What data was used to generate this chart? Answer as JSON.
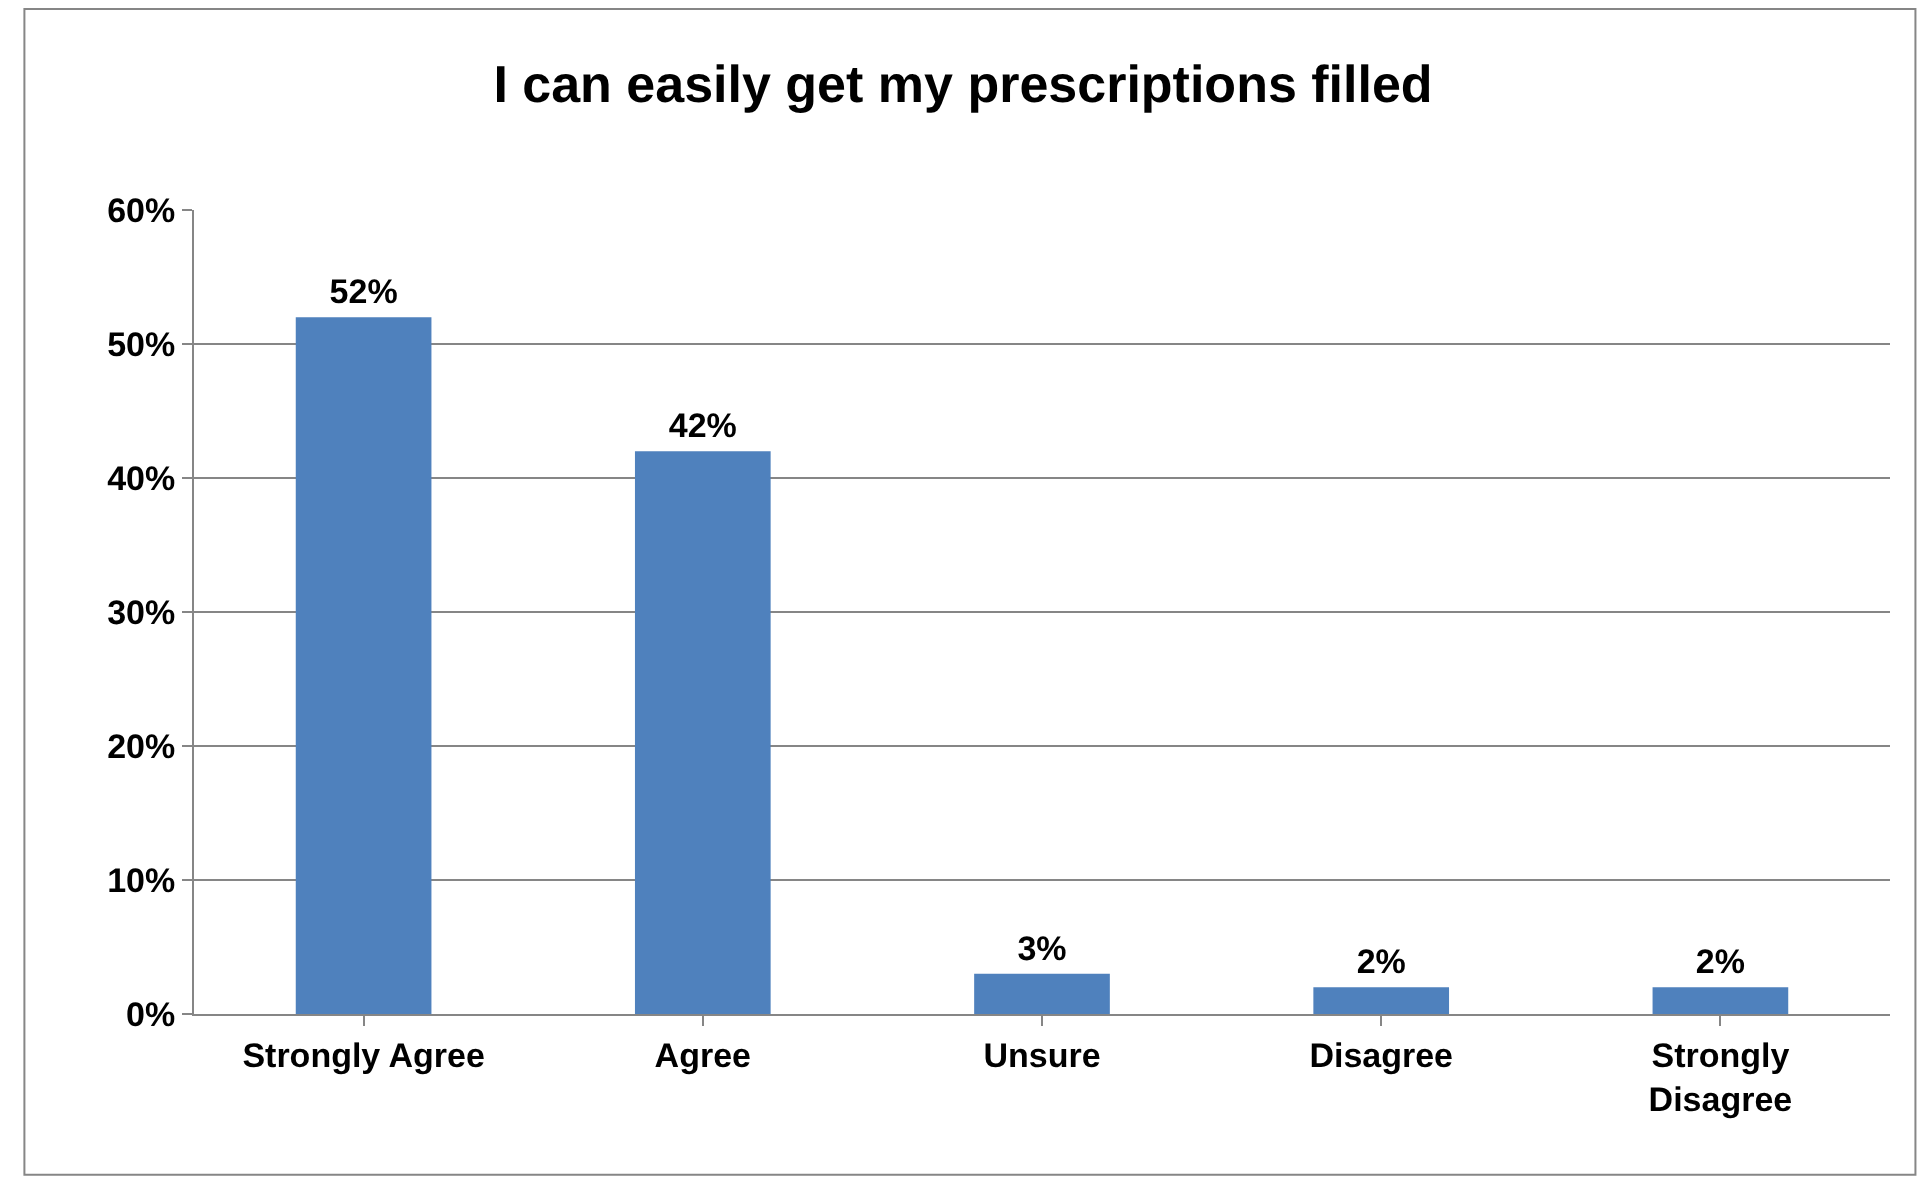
{
  "chart_data": {
    "type": "bar",
    "title": "I can easily get my prescriptions filled",
    "categories": [
      "Strongly Agree",
      "Agree",
      "Unsure",
      "Disagree",
      "Strongly Disagree"
    ],
    "values": [
      52,
      42,
      3,
      2,
      2
    ],
    "value_labels": [
      "52%",
      "42%",
      "3%",
      "2%",
      "2%"
    ],
    "color": "#4f81bd",
    "ylim": [
      0,
      60
    ],
    "yticks": [
      {
        "value": 0,
        "label": "0%"
      },
      {
        "value": 10,
        "label": "10%"
      },
      {
        "value": 20,
        "label": "20%"
      },
      {
        "value": 30,
        "label": "30%"
      },
      {
        "value": 40,
        "label": "40%"
      },
      {
        "value": 50,
        "label": "50%"
      },
      {
        "value": 60,
        "label": "60%"
      }
    ],
    "grid": "y",
    "legend": false
  }
}
